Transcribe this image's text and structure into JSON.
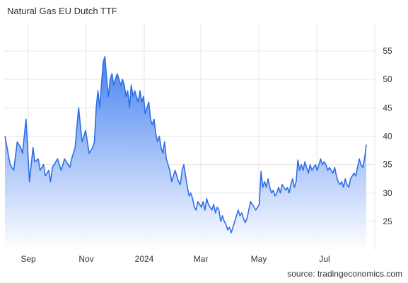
{
  "chart_data": {
    "type": "area",
    "title": "Natural Gas EU Dutch TTF",
    "source": "source: tradingeconomics.com",
    "xlabel": "",
    "ylabel": "",
    "ylim": [
      20,
      60
    ],
    "y_ticks": [
      25,
      30,
      35,
      40,
      45,
      50,
      55
    ],
    "x_tick_labels": [
      "Sep",
      "Nov",
      "2024",
      "Mar",
      "May",
      "Jul"
    ],
    "grid": true,
    "colors": {
      "line": "#2f6fe6",
      "fill_top": "#3d7bf0",
      "fill_bottom": "#ffffff",
      "grid": "#e6e6e6"
    },
    "series": [
      {
        "values": [
          [
            0,
            40.0
          ],
          [
            3,
            35.0
          ],
          [
            5,
            34.0
          ],
          [
            7,
            39.0
          ],
          [
            9,
            38.0
          ],
          [
            10,
            37.0
          ],
          [
            12,
            43.0
          ],
          [
            14,
            32.0
          ],
          [
            16,
            38.0
          ],
          [
            17,
            35.5
          ],
          [
            19,
            36.0
          ],
          [
            20,
            34.0
          ],
          [
            22,
            35.0
          ],
          [
            23,
            33.0
          ],
          [
            25,
            34.0
          ],
          [
            26,
            32.0
          ],
          [
            27,
            34.5
          ],
          [
            28,
            35.0
          ],
          [
            30,
            36.0
          ],
          [
            31,
            35.0
          ],
          [
            32,
            34.0
          ],
          [
            34,
            36.0
          ],
          [
            35,
            35.5
          ],
          [
            37,
            34.5
          ],
          [
            38,
            36.0
          ],
          [
            40,
            38.0
          ],
          [
            42,
            45.0
          ],
          [
            44,
            39.0
          ],
          [
            46,
            41.0
          ],
          [
            48,
            37.0
          ],
          [
            50,
            38.0
          ],
          [
            51,
            39.0
          ],
          [
            52,
            45.0
          ],
          [
            53,
            48.0
          ],
          [
            54,
            45.0
          ],
          [
            56,
            53.0
          ],
          [
            57,
            54.0
          ],
          [
            58,
            50.0
          ],
          [
            59,
            47.0
          ],
          [
            60,
            50.0
          ],
          [
            61,
            51.0
          ],
          [
            62,
            49.0
          ],
          [
            63,
            50.0
          ],
          [
            64,
            51.0
          ],
          [
            65,
            50.0
          ],
          [
            66,
            49.0
          ],
          [
            67,
            50.0
          ],
          [
            68,
            49.0
          ],
          [
            69,
            47.0
          ],
          [
            70,
            48.0
          ],
          [
            71,
            45.0
          ],
          [
            72,
            49.0
          ],
          [
            73,
            47.0
          ],
          [
            74,
            48.0
          ],
          [
            75,
            47.0
          ],
          [
            76,
            46.0
          ],
          [
            77,
            48.0
          ],
          [
            78,
            46.0
          ],
          [
            79,
            47.0
          ],
          [
            80,
            44.0
          ],
          [
            82,
            46.0
          ],
          [
            83,
            43.0
          ],
          [
            84,
            42.0
          ],
          [
            85,
            43.0
          ],
          [
            86,
            40.5
          ],
          [
            87,
            39.0
          ],
          [
            88,
            40.0
          ],
          [
            89,
            38.0
          ],
          [
            90,
            37.0
          ],
          [
            91,
            39.0
          ],
          [
            92,
            36.0
          ],
          [
            93,
            35.0
          ],
          [
            94,
            34.0
          ],
          [
            95,
            32.0
          ],
          [
            97,
            34.0
          ],
          [
            98,
            33.0
          ],
          [
            99,
            32.0
          ],
          [
            100,
            31.5
          ],
          [
            101,
            34.0
          ],
          [
            102,
            35.0
          ],
          [
            103,
            33.0
          ],
          [
            104,
            31.0
          ],
          [
            105,
            29.5
          ],
          [
            106,
            30.0
          ],
          [
            107,
            29.0
          ],
          [
            108,
            27.5
          ],
          [
            109,
            27.0
          ],
          [
            110,
            28.5
          ],
          [
            111,
            28.0
          ],
          [
            112,
            27.5
          ],
          [
            113,
            28.5
          ],
          [
            114,
            27.0
          ],
          [
            115,
            29.0
          ],
          [
            116,
            28.0
          ],
          [
            117,
            27.5
          ],
          [
            118,
            27.0
          ],
          [
            119,
            28.0
          ],
          [
            120,
            26.5
          ],
          [
            121,
            27.5
          ],
          [
            122,
            27.0
          ],
          [
            123,
            25.0
          ],
          [
            124,
            26.0
          ],
          [
            125,
            25.0
          ],
          [
            126,
            24.5
          ],
          [
            127,
            23.5
          ],
          [
            128,
            24.0
          ],
          [
            129,
            23.0
          ],
          [
            130,
            24.0
          ],
          [
            131,
            25.0
          ],
          [
            132,
            26.0
          ],
          [
            133,
            27.0
          ],
          [
            134,
            26.0
          ],
          [
            135,
            26.5
          ],
          [
            136,
            25.5
          ],
          [
            137,
            24.8
          ],
          [
            138,
            25.5
          ],
          [
            139,
            27.0
          ],
          [
            140,
            28.5
          ],
          [
            141,
            28.0
          ],
          [
            142,
            27.5
          ],
          [
            143,
            27.0
          ],
          [
            144,
            27.5
          ],
          [
            145,
            28.0
          ],
          [
            146,
            33.8
          ],
          [
            147,
            31.0
          ],
          [
            148,
            32.0
          ],
          [
            149,
            31.0
          ],
          [
            150,
            32.5
          ],
          [
            151,
            31.0
          ],
          [
            152,
            30.0
          ],
          [
            153,
            30.5
          ],
          [
            154,
            29.5
          ],
          [
            155,
            30.0
          ],
          [
            156,
            31.0
          ],
          [
            157,
            30.0
          ],
          [
            158,
            31.5
          ],
          [
            159,
            31.0
          ],
          [
            160,
            30.5
          ],
          [
            161,
            31.0
          ],
          [
            162,
            30.0
          ],
          [
            163,
            31.5
          ],
          [
            164,
            32.5
          ],
          [
            165,
            31.0
          ],
          [
            166,
            32.0
          ],
          [
            167,
            35.8
          ],
          [
            168,
            34.0
          ],
          [
            169,
            35.0
          ],
          [
            170,
            34.0
          ],
          [
            171,
            35.5
          ],
          [
            172,
            34.5
          ],
          [
            173,
            33.5
          ],
          [
            174,
            35.0
          ],
          [
            175,
            34.0
          ],
          [
            176,
            34.5
          ],
          [
            177,
            35.0
          ],
          [
            178,
            34.0
          ],
          [
            179,
            35.0
          ],
          [
            180,
            36.0
          ],
          [
            181,
            35.0
          ],
          [
            182,
            35.5
          ],
          [
            183,
            35.0
          ],
          [
            184,
            34.0
          ],
          [
            185,
            34.5
          ],
          [
            186,
            34.0
          ],
          [
            187,
            33.5
          ],
          [
            188,
            34.5
          ],
          [
            189,
            33.0
          ],
          [
            190,
            32.0
          ],
          [
            191,
            31.5
          ],
          [
            192,
            32.0
          ],
          [
            193,
            31.0
          ],
          [
            194,
            32.5
          ],
          [
            195,
            31.5
          ],
          [
            196,
            31.0
          ],
          [
            197,
            32.5
          ],
          [
            198,
            33.0
          ],
          [
            199,
            33.5
          ],
          [
            200,
            33.0
          ],
          [
            201,
            34.5
          ],
          [
            202,
            36.0
          ],
          [
            203,
            35.0
          ],
          [
            204,
            34.5
          ],
          [
            205,
            36.0
          ],
          [
            206,
            38.5
          ]
        ]
      }
    ]
  }
}
